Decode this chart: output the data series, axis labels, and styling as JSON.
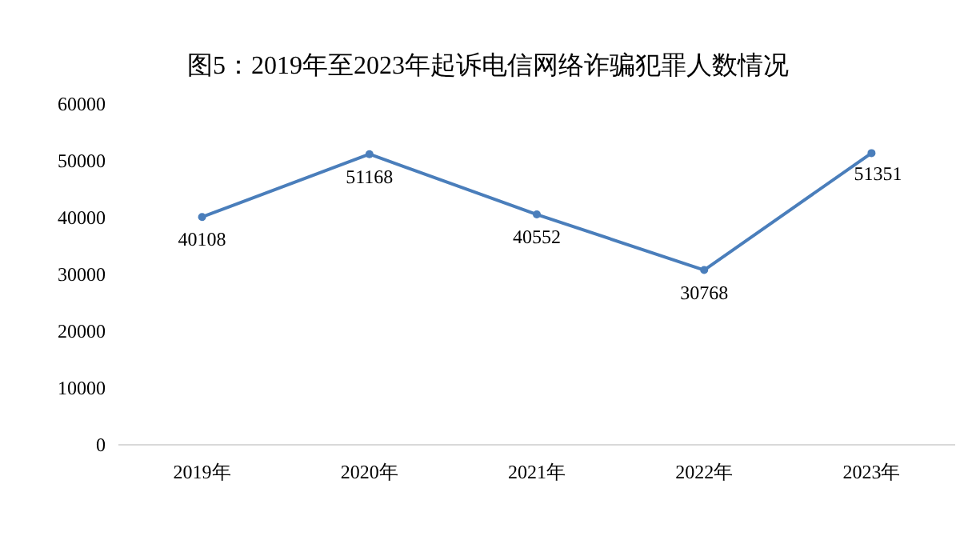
{
  "chart_data": {
    "type": "line",
    "title": "图5：2019年至2023年起诉电信网络诈骗犯罪人数情况",
    "categories": [
      "2019年",
      "2020年",
      "2021年",
      "2022年",
      "2023年"
    ],
    "series": [
      {
        "color": "#4a7ebb",
        "values": [
          40108,
          51168,
          40552,
          30768,
          51351
        ]
      }
    ],
    "ylim": [
      0,
      60000
    ],
    "yticks": [
      0,
      10000,
      20000,
      30000,
      40000,
      50000,
      60000
    ],
    "data_labels": true,
    "marker": "circle",
    "line_style": "solid",
    "grid": false
  }
}
